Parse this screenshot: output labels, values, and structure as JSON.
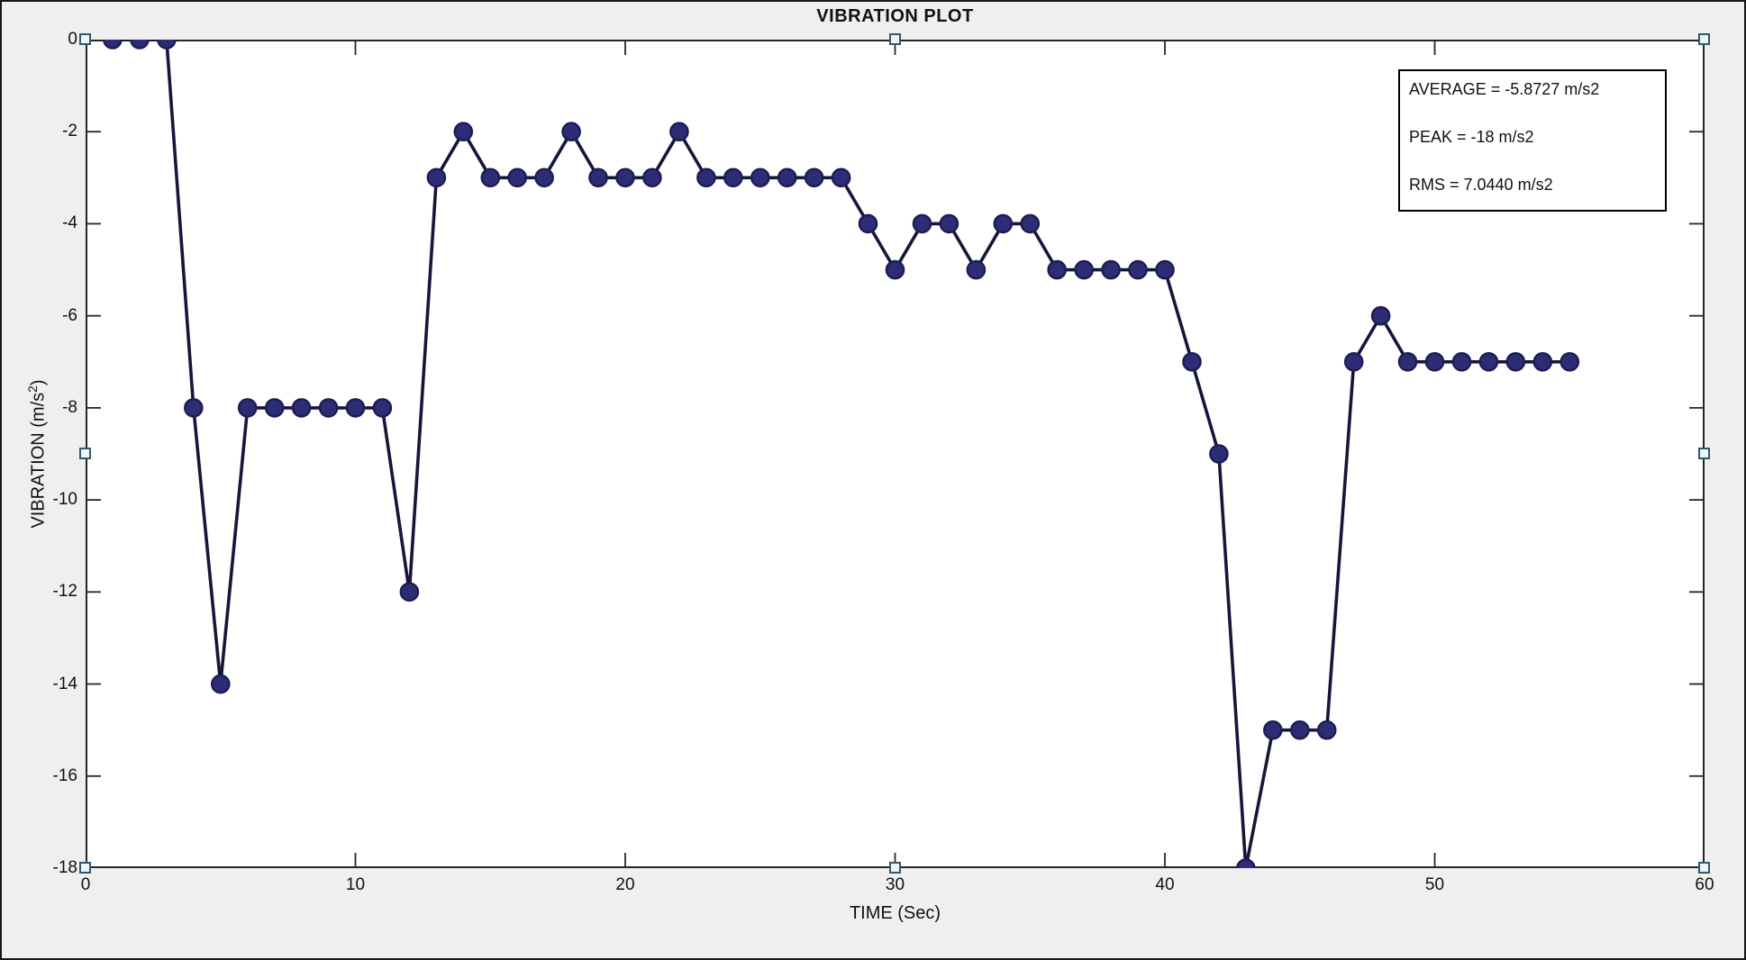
{
  "figure": {
    "background_color": "#efeff0",
    "plot_background_color": "#ffffff",
    "frame_color": "#262626",
    "handle_fill_color": "#ecf6f9",
    "handle_border_color": "#32586a"
  },
  "chart_data": {
    "type": "line",
    "title": "VIBRATION PLOT",
    "xlabel": "TIME (Sec)",
    "ylabel": "VIBRATION (m/s2)",
    "ylabel_parts": {
      "base": "VIBRATION (m/s",
      "sup": "2",
      "close": ")"
    },
    "xlim": [
      0,
      60
    ],
    "ylim": [
      -18,
      0
    ],
    "xticks": [
      0,
      10,
      20,
      30,
      40,
      50,
      60
    ],
    "yticks": [
      0,
      -2,
      -4,
      -6,
      -8,
      -10,
      -12,
      -14,
      -16,
      -18
    ],
    "grid": false,
    "legend": "none",
    "line_color": "#16163c",
    "marker_color": "#2d2d75",
    "marker_edge_color": "#1c1c55",
    "x": [
      1,
      2,
      3,
      4,
      5,
      6,
      7,
      8,
      9,
      10,
      11,
      12,
      13,
      14,
      15,
      16,
      17,
      18,
      19,
      20,
      21,
      22,
      23,
      24,
      25,
      26,
      27,
      28,
      29,
      30,
      31,
      32,
      33,
      34,
      35,
      36,
      37,
      38,
      39,
      40,
      41,
      42,
      43,
      44,
      45,
      46,
      47,
      48,
      49,
      50,
      51,
      52,
      53,
      54,
      55
    ],
    "series": [
      {
        "name": "vibration",
        "values": [
          0,
          0,
          0,
          -8,
          -14,
          -8,
          -8,
          -8,
          -8,
          -8,
          -8,
          -12,
          -3,
          -2,
          -3,
          -3,
          -3,
          -2,
          -3,
          -3,
          -3,
          -2,
          -3,
          -3,
          -3,
          -3,
          -3,
          -3,
          -4,
          -5,
          -4,
          -4,
          -5,
          -4,
          -4,
          -5,
          -5,
          -5,
          -5,
          -5,
          -7,
          -9,
          -18,
          -15,
          -15,
          -15,
          -7,
          -6,
          -7,
          -7,
          -7,
          -7,
          -7,
          -7,
          -7
        ]
      }
    ]
  },
  "annotation_box": {
    "lines": [
      "AVERAGE = -5.8727 m/s2",
      "PEAK = -18 m/s2",
      "RMS = 7.0440 m/s2"
    ]
  }
}
